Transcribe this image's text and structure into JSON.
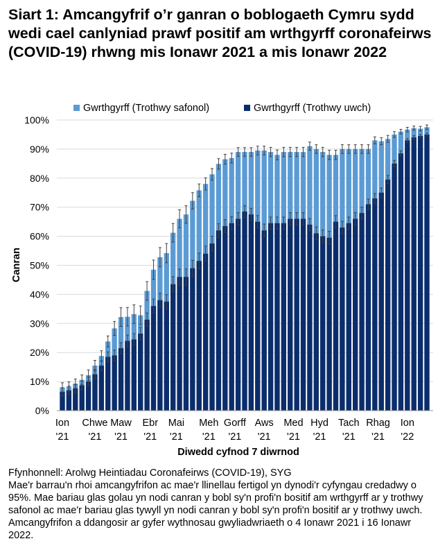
{
  "title": "Siart 1: Amcangyfrif o’r ganran o boblogaeth Cymru sydd wedi cael canlyniad prawf positif am wrthgyrff coronafeirws (COVID-19) rhwng mis Ionawr 2021 a mis Ionawr 2022",
  "footer": {
    "source": "Ffynhonnell: Arolwg Heintiadau Coronafeirws (COVID-19), SYG",
    "note": "Mae'r barrau'n rhoi amcangyfrifon ac mae'r llinellau fertigol yn dynodi'r cyfyngau credadwy o 95%. Mae bariau glas golau yn nodi canran y bobl sy'n profi'n bositif am wrthgyrff ar y trothwy safonol ac mae'r bariau glas tywyll yn nodi canran y bobl sy'n profi'n bositif ar y trothwy uwch. Amcangyfrifon a ddangosir ar gyfer wythnosau gwyliadwriaeth o 4 Ionawr 2021 i 16 Ionawr 2022."
  },
  "colors": {
    "light": "#5b9bd5",
    "dark": "#0c2d6b",
    "error": "#404040",
    "axis": "#999999"
  },
  "chart_data": {
    "type": "bar",
    "overlay": true,
    "ylabel": "Canran",
    "xlabel": "Diwedd cyfnod 7 diwrnod",
    "ylim": [
      0,
      100
    ],
    "yticks": [
      "0%",
      "10%",
      "20%",
      "30%",
      "40%",
      "50%",
      "60%",
      "70%",
      "80%",
      "90%",
      "100%"
    ],
    "month_labels": [
      {
        "label": "Ion",
        "year": "'21",
        "index": 0
      },
      {
        "label": "Chwe",
        "year": "'21",
        "index": 5
      },
      {
        "label": "Maw",
        "year": "'21",
        "index": 9
      },
      {
        "label": "Ebr",
        "year": "'21",
        "index": 13.5
      },
      {
        "label": "Mai",
        "year": "'21",
        "index": 17.5
      },
      {
        "label": "Meh",
        "year": "'21",
        "index": 22.5
      },
      {
        "label": "Gorff",
        "year": "'21",
        "index": 26.5
      },
      {
        "label": "Aws",
        "year": "'21",
        "index": 31
      },
      {
        "label": "Med",
        "year": "'21",
        "index": 35.5
      },
      {
        "label": "Hyd",
        "year": "'21",
        "index": 39.5
      },
      {
        "label": "Tach",
        "year": "'21",
        "index": 44
      },
      {
        "label": "Rhag",
        "year": "'21",
        "index": 48.5
      },
      {
        "label": "Ion",
        "year": "'22",
        "index": 53
      }
    ],
    "series": [
      {
        "name": "Gwrthgyrff (Trothwy safonol)",
        "values": [
          8.0,
          8.3,
          9.3,
          10.6,
          12.2,
          15.5,
          18.8,
          23.8,
          28.3,
          32.2,
          32.3,
          33.2,
          32.8,
          41.2,
          48.5,
          52.8,
          54.2,
          61.2,
          66.0,
          67.5,
          72.2,
          75.8,
          78.0,
          81.3,
          84.9,
          86.5,
          86.9,
          89.0,
          89.0,
          89.0,
          89.5,
          89.5,
          89.0,
          88.0,
          89.0,
          89.0,
          89.0,
          89.0,
          91.0,
          90.0,
          89.0,
          88.0,
          88.0,
          90.0,
          90.0,
          90.0,
          90.0,
          90.0,
          93.0,
          92.7,
          93.5,
          95.0,
          96.0,
          96.7,
          97.2,
          97.0,
          97.5
        ],
        "errors": [
          1.6,
          1.6,
          1.6,
          1.7,
          1.8,
          1.8,
          1.8,
          1.9,
          2.4,
          3.2,
          3.2,
          3.2,
          3.2,
          3.2,
          3.3,
          3.3,
          3.3,
          3.2,
          3.1,
          3.0,
          2.8,
          2.2,
          2.1,
          2.0,
          1.8,
          1.7,
          1.7,
          1.5,
          1.5,
          1.5,
          1.5,
          1.5,
          1.6,
          1.7,
          1.6,
          1.6,
          1.6,
          1.6,
          1.4,
          1.5,
          1.6,
          1.6,
          1.6,
          1.5,
          1.5,
          1.5,
          1.5,
          1.5,
          1.2,
          1.2,
          1.2,
          1.0,
          0.8,
          0.8,
          0.7,
          0.8,
          0.8
        ]
      },
      {
        "name": "Gwrthgyrff (Trothwy uwch)",
        "values": [
          6.5,
          7.0,
          7.6,
          8.7,
          10.0,
          12.5,
          15.5,
          18.5,
          19.0,
          21.5,
          24.0,
          24.5,
          26.5,
          31.3,
          36.0,
          38.0,
          37.5,
          43.5,
          46.0,
          46.0,
          49.0,
          51.5,
          54.0,
          57.5,
          62.0,
          63.5,
          64.5,
          66.0,
          68.5,
          67.5,
          65.0,
          62.0,
          64.5,
          64.5,
          64.5,
          66.0,
          66.0,
          66.0,
          64.0,
          61.0,
          60.0,
          59.5,
          65.0,
          63.0,
          64.5,
          66.0,
          68.0,
          71.0,
          73.0,
          75.0,
          79.5,
          85.0,
          88.5,
          93.0,
          94.0,
          94.5,
          95.0
        ],
        "errors": [
          1.4,
          1.4,
          1.4,
          1.5,
          1.5,
          1.6,
          1.6,
          1.7,
          1.8,
          1.9,
          2.0,
          2.0,
          2.1,
          2.3,
          2.4,
          2.4,
          2.4,
          2.6,
          2.7,
          2.7,
          2.7,
          2.7,
          2.6,
          2.5,
          2.3,
          2.2,
          2.2,
          2.1,
          2.0,
          2.1,
          2.1,
          2.2,
          2.1,
          2.1,
          2.1,
          2.1,
          2.1,
          2.1,
          2.1,
          2.2,
          2.2,
          2.2,
          2.1,
          2.1,
          2.1,
          2.1,
          2.0,
          1.8,
          1.7,
          1.6,
          1.4,
          1.1,
          0.9,
          0.6,
          0.6,
          0.5,
          0.5
        ]
      }
    ]
  }
}
